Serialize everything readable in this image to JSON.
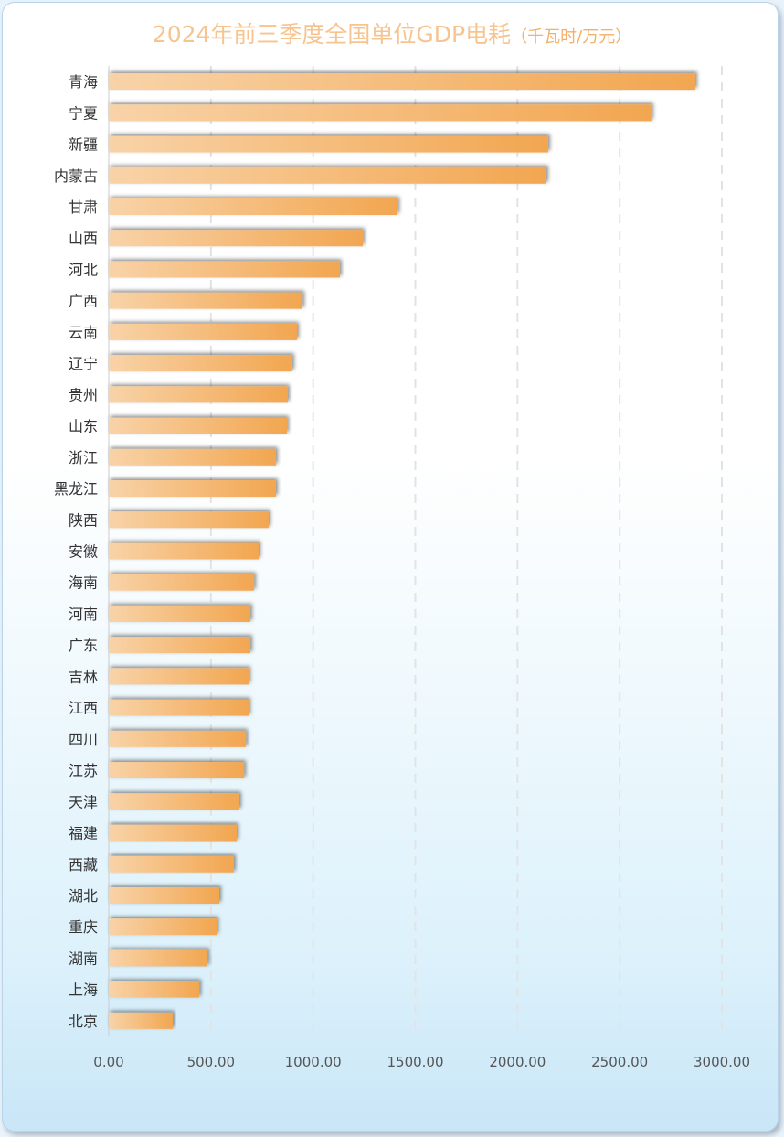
{
  "chart_data": {
    "type": "bar",
    "orientation": "horizontal",
    "title": "2024年前三季度全国单位GDP电耗",
    "unit": "（千瓦时/万元）",
    "categories": [
      "青海",
      "宁夏",
      "新疆",
      "内蒙古",
      "甘肃",
      "山西",
      "河北",
      "广西",
      "云南",
      "辽宁",
      "贵州",
      "山东",
      "浙江",
      "黑龙江",
      "陕西",
      "安徽",
      "海南",
      "河南",
      "广东",
      "吉林",
      "江西",
      "四川",
      "江苏",
      "天津",
      "福建",
      "西藏",
      "湖北",
      "重庆",
      "湖南",
      "上海",
      "北京"
    ],
    "values": [
      2870,
      2655,
      2150,
      2141,
      1413,
      1243,
      1131,
      948,
      921,
      898,
      876,
      872,
      818,
      818,
      782,
      733,
      711,
      693,
      693,
      684,
      684,
      671,
      662,
      639,
      626,
      612,
      541,
      528,
      483,
      443,
      313
    ],
    "xlim": [
      0,
      3000
    ],
    "x_ticks": [
      "0.00",
      "500.00",
      "1000.00",
      "1500.00",
      "2000.00",
      "2500.00",
      "3000.00"
    ],
    "grid": true,
    "colors": {
      "bar_start": "#f8d3a8",
      "bar_end": "#f2a650",
      "title": "#f7c48f"
    }
  }
}
